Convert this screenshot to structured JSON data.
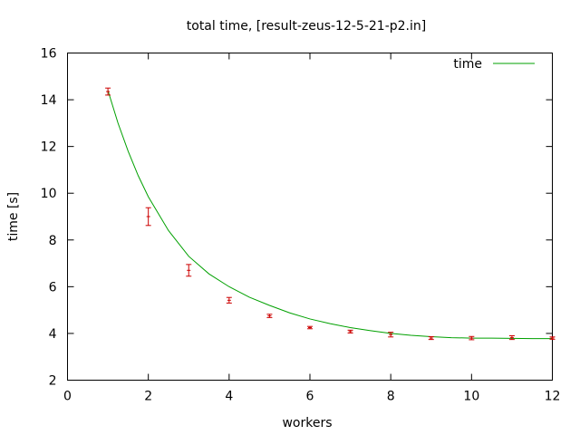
{
  "chart_data": {
    "type": "scatter",
    "title": "total time, [result-zeus-12-5-21-p2.in]",
    "xlabel": "workers",
    "ylabel": "time [s]",
    "xlim": [
      0,
      12
    ],
    "ylim": [
      2,
      16
    ],
    "xticks": [
      0,
      2,
      4,
      6,
      8,
      10,
      12
    ],
    "yticks": [
      2,
      4,
      6,
      8,
      10,
      12,
      14,
      16
    ],
    "grid": false,
    "legend_position": "top-right",
    "series": [
      {
        "name": "time",
        "kind": "line",
        "color": "#00a000",
        "x": [
          1,
          1.25,
          1.5,
          1.75,
          2,
          2.5,
          3,
          3.5,
          4,
          4.5,
          5,
          5.5,
          6,
          6.5,
          7,
          7.5,
          8,
          8.5,
          9,
          9.5,
          10,
          10.5,
          11,
          11.5,
          12
        ],
        "y": [
          14.4,
          13.0,
          11.8,
          10.75,
          9.85,
          8.4,
          7.3,
          6.55,
          6.0,
          5.55,
          5.2,
          4.88,
          4.62,
          4.42,
          4.25,
          4.12,
          4.0,
          3.92,
          3.86,
          3.82,
          3.8,
          3.8,
          3.79,
          3.78,
          3.78
        ]
      },
      {
        "name": "",
        "kind": "errorbars",
        "color": "#cc0000",
        "x": [
          1,
          2,
          3,
          4,
          5,
          6,
          7,
          8,
          9,
          10,
          11,
          12
        ],
        "y": [
          14.35,
          9.0,
          6.7,
          5.42,
          4.75,
          4.25,
          4.08,
          3.95,
          3.8,
          3.8,
          3.82,
          3.8
        ],
        "err": [
          0.15,
          0.38,
          0.25,
          0.12,
          0.07,
          0.05,
          0.06,
          0.1,
          0.06,
          0.07,
          0.08,
          0.05
        ]
      }
    ]
  }
}
